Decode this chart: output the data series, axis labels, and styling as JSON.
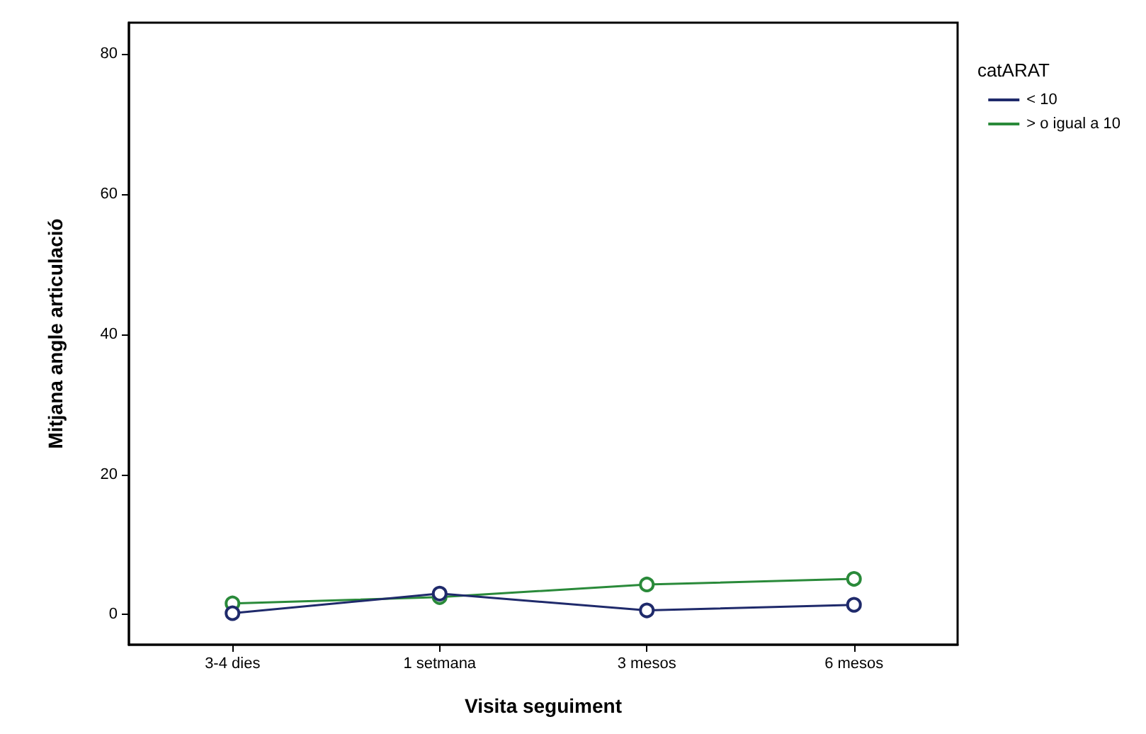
{
  "chart_data": {
    "type": "line",
    "xlabel": "Visita seguiment",
    "ylabel": "Mitjana angle articulació",
    "legend_title": "catARAT",
    "categories": [
      "3-4 dies",
      "1 setmana",
      "3 mesos",
      "6 mesos"
    ],
    "series": [
      {
        "name": "< 10",
        "color": "#1f2a6b",
        "values": [
          0.2,
          3,
          0.6,
          1.4
        ]
      },
      {
        "name": "> o igual a 10",
        "color": "#2a8a3a",
        "values": [
          1.6,
          2.5,
          4.3,
          5.1
        ]
      }
    ],
    "ylim": [
      -4.3,
      84.5
    ],
    "yticks": [
      0,
      20,
      40,
      60,
      80
    ],
    "grid": false,
    "legend": "top right",
    "marker": "circle",
    "line_style": "solid"
  }
}
